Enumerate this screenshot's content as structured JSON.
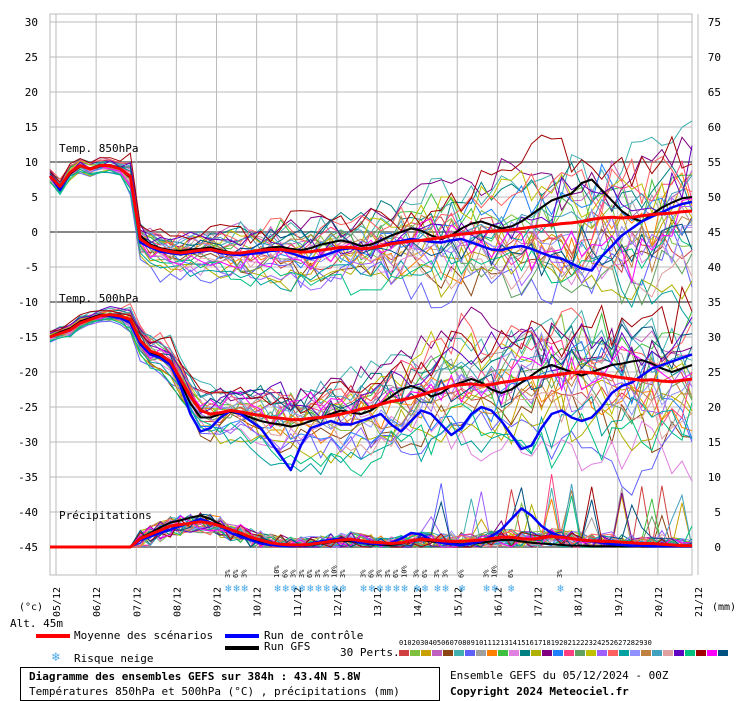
{
  "chart_data": {
    "type": "line",
    "title": "Diagramme des ensembles GEFS sur 384h : 43.4N 5.8W",
    "subtitle": "Températures 850hPa et 500hPa (°C) , précipitations (mm)",
    "x_dates": [
      "06/12",
      "07/12",
      "08/12",
      "09/12",
      "10/12",
      "11/12",
      "12/12",
      "13/12",
      "14/12",
      "15/12",
      "16/12",
      "17/12",
      "18/12",
      "19/12",
      "20/12",
      "21/12"
    ],
    "x_first_label": "05/12",
    "left_axis_ticks": [
      30,
      25,
      20,
      15,
      10,
      5,
      0,
      -5,
      -10,
      -15,
      -20,
      -25,
      -30,
      -35,
      -40,
      -45
    ],
    "right_axis_ticks": [
      75,
      70,
      65,
      60,
      55,
      50,
      45,
      40,
      35,
      30,
      25,
      20,
      15,
      10,
      5,
      0
    ],
    "left_unit": "(°c)",
    "right_unit": "(mm)",
    "altitude": "Alt. 45m",
    "panels": {
      "t850_label": "Temp. 850hPa",
      "t500_label": "Temp. 500hPa",
      "precip_label": "Précipitations"
    },
    "step_hours": 6,
    "series": [
      {
        "name": "Moyenne des scénarios",
        "role": "mean",
        "t850": [
          8,
          6.5,
          8.5,
          9.5,
          9,
          9.5,
          9.5,
          9,
          8,
          -1,
          -2,
          -2.5,
          -2.8,
          -3,
          -2.8,
          -2.6,
          -2.5,
          -2.8,
          -3,
          -3,
          -2.8,
          -2.6,
          -2.5,
          -2.5,
          -2.7,
          -2.9,
          -2.8,
          -2.6,
          -2.4,
          -2.2,
          -2.2,
          -2.4,
          -2.3,
          -2,
          -1.7,
          -1.5,
          -1.3,
          -1.2,
          -1,
          -0.8,
          -0.5,
          -0.3,
          -0.2,
          0,
          0.1,
          0.2,
          0.3,
          0.5,
          0.7,
          0.9,
          1,
          1.2,
          1.3,
          1.5,
          1.8,
          2,
          2.1,
          2,
          2.1,
          2.3,
          2.5,
          2.6,
          2.7,
          2.9,
          3
        ],
        "t500": [
          -15,
          -14.5,
          -14,
          -13,
          -12.5,
          -12,
          -11.8,
          -12,
          -12.5,
          -15.5,
          -17,
          -17.5,
          -18.5,
          -21,
          -23.5,
          -25.5,
          -26,
          -25.8,
          -25.5,
          -25.7,
          -26,
          -26.2,
          -26.5,
          -26.6,
          -26.8,
          -26.8,
          -26.6,
          -26.5,
          -26.3,
          -26,
          -25.7,
          -25.3,
          -25,
          -24.6,
          -24.2,
          -24,
          -23.7,
          -23.3,
          -22.8,
          -22.4,
          -22,
          -21.8,
          -21.7,
          -21.9,
          -21.8,
          -21.5,
          -21.3,
          -21,
          -20.8,
          -20.7,
          -20.5,
          -20.3,
          -20.1,
          -20,
          -20.1,
          -20.3,
          -20.6,
          -20.8,
          -21,
          -21.2,
          -21.1,
          -21.3,
          -21.4,
          -21.2,
          -21
        ],
        "precip": [
          0,
          0,
          0,
          0,
          0,
          0,
          0,
          0,
          0,
          1.2,
          1.8,
          2.4,
          3.0,
          3.2,
          3.4,
          3.6,
          3.4,
          3.0,
          2.5,
          2.0,
          1.4,
          1.0,
          0.6,
          0.4,
          0.3,
          0.3,
          0.4,
          0.6,
          0.8,
          1.0,
          1.1,
          0.9,
          0.7,
          0.6,
          0.5,
          0.6,
          0.9,
          1.1,
          1.0,
          0.9,
          0.8,
          0.8,
          0.9,
          1.0,
          1.2,
          1.4,
          1.4,
          1.2,
          1.1,
          1.3,
          1.5,
          1.4,
          1.2,
          1.0,
          0.9,
          0.8,
          0.8,
          0.7,
          0.6,
          0.5,
          0.5,
          0.4,
          0.3,
          0.2,
          0.2
        ]
      },
      {
        "name": "Run de contrôle",
        "role": "control",
        "t850": [
          8,
          6,
          8.5,
          9.5,
          9,
          9.5,
          9.5,
          9,
          8,
          -1.5,
          -2.2,
          -2.8,
          -3,
          -3.2,
          -3,
          -2.8,
          -2.6,
          -3,
          -3.2,
          -3.3,
          -3.1,
          -3,
          -2.7,
          -2.6,
          -3,
          -3.5,
          -3.8,
          -3.5,
          -3,
          -2.5,
          -2.3,
          -2.5,
          -2.3,
          -2,
          -1.5,
          -1.3,
          -1,
          -1.2,
          -1.4,
          -1.5,
          -1.2,
          -1,
          -1.5,
          -2,
          -2.5,
          -2.6,
          -2.2,
          -2,
          -2.4,
          -3,
          -3.5,
          -3.8,
          -4.5,
          -5.2,
          -5.5,
          -3.5,
          -2,
          -0.5,
          0.5,
          1.5,
          2.2,
          2.8,
          3.5,
          4,
          4.3
        ],
        "t500": [
          -15,
          -14.5,
          -14,
          -13,
          -12.5,
          -12,
          -12,
          -12.3,
          -13,
          -16,
          -17.5,
          -18,
          -19,
          -22,
          -26,
          -28.5,
          -28,
          -26.5,
          -25.5,
          -26,
          -27,
          -28,
          -30,
          -32,
          -34,
          -30.5,
          -28,
          -27.5,
          -27,
          -27.5,
          -27.5,
          -27,
          -26.5,
          -26,
          -27.5,
          -28.5,
          -27,
          -25.5,
          -26,
          -27.5,
          -29,
          -28,
          -26,
          -25,
          -25.5,
          -27,
          -29,
          -31,
          -30.5,
          -28,
          -26,
          -25.5,
          -26.5,
          -27,
          -26.5,
          -25,
          -23,
          -22,
          -21.5,
          -20.5,
          -19.5,
          -19,
          -18.5,
          -18,
          -17.5
        ],
        "precip": [
          0,
          0,
          0,
          0,
          0,
          0,
          0,
          0,
          0,
          1.0,
          1.5,
          2.0,
          2.5,
          3.0,
          3.5,
          4.0,
          3.5,
          3.0,
          2.0,
          1.5,
          1.0,
          0.5,
          0.3,
          0.2,
          0.1,
          0.2,
          0.5,
          0.8,
          1.0,
          1.2,
          1.0,
          0.6,
          0.5,
          0.4,
          0.6,
          1.2,
          2.0,
          1.8,
          1.0,
          0.6,
          0.4,
          0.3,
          0.5,
          0.8,
          1.5,
          2.5,
          4.0,
          5.5,
          4.5,
          3.0,
          2.0,
          1.5,
          1.2,
          1.0,
          0.8,
          0.6,
          0.4,
          0.3,
          0.2,
          0.2,
          0.1,
          0.1,
          0.1,
          0.1,
          0.1
        ]
      },
      {
        "name": "Run GFS",
        "role": "gfs",
        "t850": [
          8,
          6.2,
          8.3,
          9.4,
          9.1,
          9.6,
          9.4,
          9,
          7.8,
          -0.5,
          -1.8,
          -2.3,
          -2.6,
          -2.7,
          -2.5,
          -2.4,
          -2.2,
          -2.6,
          -2.9,
          -3.1,
          -2.9,
          -2.5,
          -2.2,
          -2.1,
          -2.4,
          -2.6,
          -2.3,
          -1.8,
          -1.5,
          -1.2,
          -1.5,
          -2,
          -1.8,
          -1.2,
          -0.5,
          0,
          0.5,
          0.2,
          -0.5,
          -1,
          -0.5,
          0.5,
          1.2,
          1.5,
          1,
          0.5,
          0.8,
          1.5,
          2.5,
          3.5,
          4.5,
          5,
          5.5,
          7,
          7.5,
          6,
          4.5,
          3,
          2,
          1.5,
          2.5,
          3.5,
          4.2,
          4.8,
          5
        ],
        "t500": [
          -15,
          -14.3,
          -13.8,
          -12.8,
          -12.3,
          -11.8,
          -11.8,
          -12.2,
          -12.8,
          -15.8,
          -17.2,
          -17.8,
          -18.8,
          -21.5,
          -24.5,
          -26.5,
          -26.5,
          -26,
          -25.7,
          -26,
          -26.5,
          -27,
          -27.3,
          -27.5,
          -27.8,
          -27.5,
          -27,
          -26.5,
          -26,
          -25.5,
          -25.8,
          -26,
          -25.5,
          -24.5,
          -23.5,
          -22.5,
          -22,
          -22.5,
          -23.5,
          -23,
          -22,
          -21.5,
          -21,
          -21.5,
          -22.5,
          -23,
          -22.5,
          -21.5,
          -20.5,
          -19.5,
          -19,
          -19.5,
          -20,
          -20.5,
          -20,
          -19.5,
          -19,
          -18.8,
          -18.5,
          -18.3,
          -18.8,
          -19.5,
          -20,
          -19.5,
          -19
        ],
        "precip": [
          0,
          0,
          0,
          0,
          0,
          0,
          0,
          0,
          0,
          1.3,
          2.0,
          2.8,
          3.5,
          3.8,
          4.2,
          4.5,
          4.0,
          3.2,
          2.5,
          1.8,
          1.2,
          0.8,
          0.5,
          0.3,
          0.2,
          0.2,
          0.3,
          0.5,
          0.7,
          0.9,
          0.8,
          0.6,
          0.4,
          0.3,
          0.3,
          0.5,
          0.8,
          1.0,
          0.8,
          0.6,
          0.5,
          0.4,
          0.5,
          0.6,
          0.8,
          1.0,
          1.0,
          0.8,
          0.6,
          0.5,
          0.4,
          0.3,
          0.2,
          0.2,
          0.1,
          0.1,
          0.1,
          0.1,
          0.1,
          0.1,
          0.1,
          0.1,
          0.1,
          0.1,
          0.1
        ]
      }
    ],
    "perturbations": {
      "count_label": "30 Perts.",
      "labels": [
        "01",
        "02",
        "03",
        "04",
        "05",
        "06",
        "07",
        "08",
        "09",
        "10",
        "11",
        "12",
        "13",
        "14",
        "15",
        "16",
        "17",
        "18",
        "19",
        "20",
        "21",
        "22",
        "23",
        "24",
        "25",
        "26",
        "27",
        "28",
        "29",
        "30"
      ],
      "colors": [
        "#d04040",
        "#80c040",
        "#c8a000",
        "#c060c0",
        "#8b4513",
        "#40b0b0",
        "#6060ff",
        "#a0a0a0",
        "#ff8000",
        "#40c040",
        "#e080e0",
        "#008080",
        "#b0b000",
        "#800080",
        "#2080ff",
        "#ff4080",
        "#60a060",
        "#c0c000",
        "#a060ff",
        "#ff6060",
        "#00a0a0",
        "#9090ff",
        "#c08040",
        "#40a0c0",
        "#e0a0a0",
        "#6000c0",
        "#00c080",
        "#a00000",
        "#ff00ff",
        "#005080"
      ]
    },
    "snow_risk_markers": {
      "label_repeat": "3%",
      "steps": [
        [
          3,
          5,
          7
        ],
        [
          15,
          17
        ],
        [
          19,
          21,
          23,
          25
        ],
        [
          27,
          29
        ],
        [
          31
        ],
        [
          36,
          38,
          40,
          42,
          44,
          46
        ],
        [
          49,
          51
        ],
        [
          54,
          56
        ],
        [
          60
        ],
        [
          66,
          68
        ],
        [
          72
        ],
        [
          84
        ]
      ]
    }
  },
  "legend": {
    "mean_label": "Moyenne des scénarios",
    "control_label": "Run de contrôle",
    "gfs_label": "Run GFS",
    "snow_label": "Risque neige",
    "mean_color": "#ff0000",
    "control_color": "#0000ff",
    "gfs_color": "#000000"
  },
  "footer": {
    "title": "Diagramme des ensembles GEFS sur 384h : 43.4N 5.8W",
    "subtitle": "Températures 850hPa et 500hPa (°C) , précipitations (mm)",
    "run_info": "Ensemble GEFS du 05/12/2024 - 00Z",
    "copyright": "Copyright 2024 Meteociel.fr"
  },
  "snow_marker_text": {
    "pct": "3%",
    "pct_alt": "6%",
    "pct_10": "10%"
  }
}
